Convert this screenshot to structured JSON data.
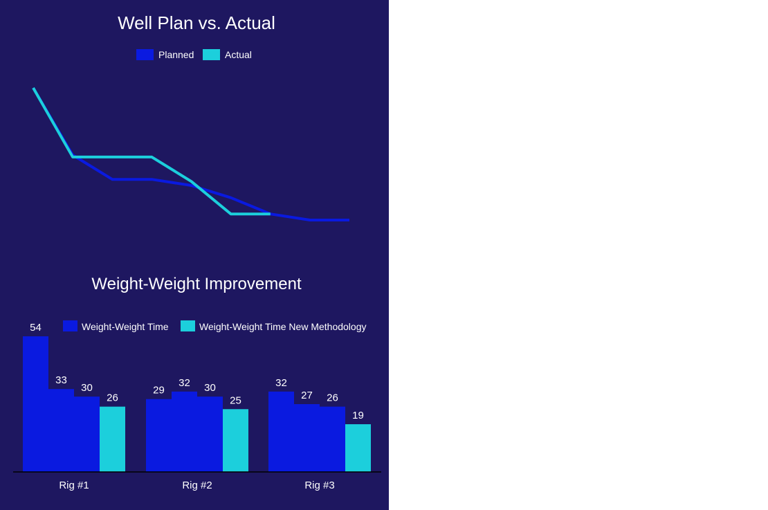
{
  "chart_data": [
    {
      "type": "line",
      "title": "Well Plan vs. Actual",
      "xlabel": "",
      "ylabel": "",
      "grid": false,
      "legend": "top-center",
      "x": [
        0,
        1,
        2,
        3,
        4,
        5,
        6,
        7,
        8
      ],
      "series": [
        {
          "name": "Planned",
          "color": "#0a1ae0",
          "values": [
            100,
            67,
            55,
            55,
            52,
            46,
            38,
            35,
            35
          ]
        },
        {
          "name": "Actual",
          "color": "#1ccfdc",
          "values": [
            100,
            66,
            66,
            66,
            54,
            38,
            38,
            null,
            null
          ]
        }
      ]
    },
    {
      "type": "bar",
      "title": "Weight-Weight Improvement",
      "xlabel": "",
      "ylabel": "",
      "grid": false,
      "legend": "top-right",
      "ylim": [
        0,
        54
      ],
      "categories": [
        "Rig #1",
        "Rig #2",
        "Rig #3"
      ],
      "series": [
        {
          "name": "Weight-Weight Time",
          "color": "#0a1ae0",
          "values": [
            [
              54,
              33,
              30
            ],
            [
              29,
              32,
              30
            ],
            [
              32,
              27,
              26
            ]
          ]
        },
        {
          "name": "Weight-Weight Time New Methodology",
          "color": "#1ccfdc",
          "values": [
            26,
            25,
            19
          ]
        }
      ]
    }
  ]
}
